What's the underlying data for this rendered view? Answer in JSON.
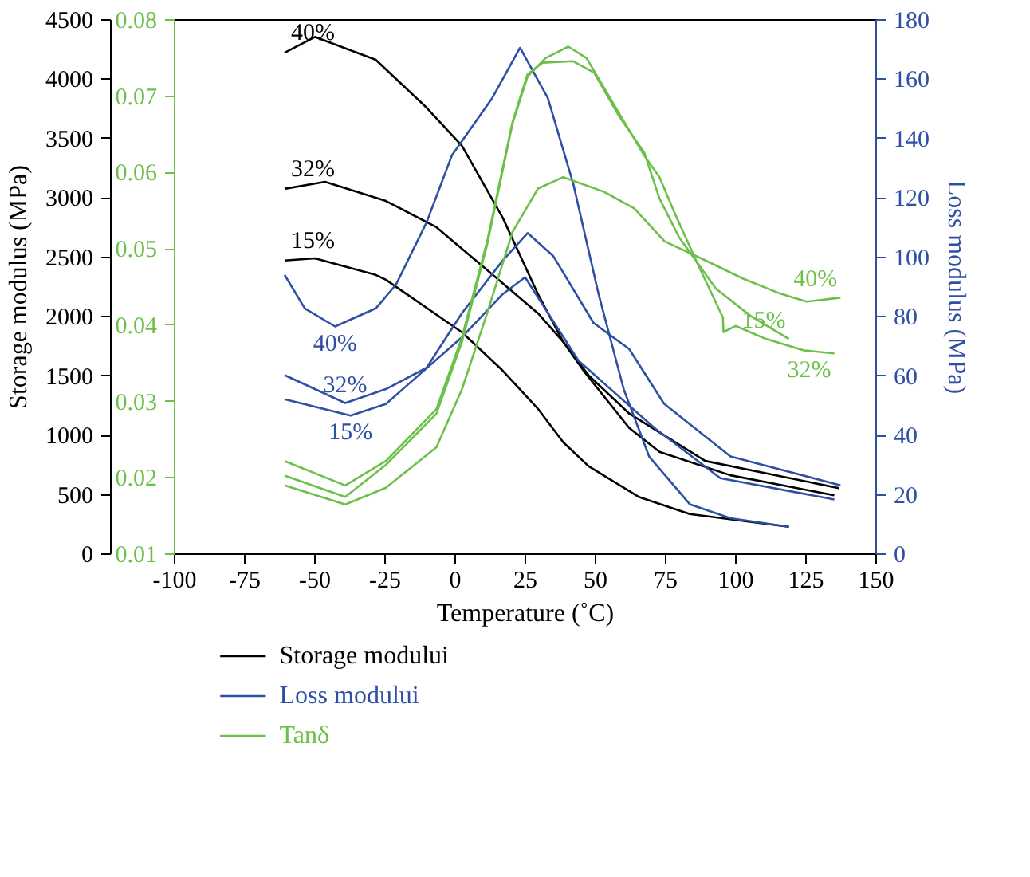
{
  "chart_data": {
    "type": "line",
    "xlabel": "Temperature (˚C)",
    "ylabel": "Storage modulus (MPa)",
    "y2label": "Loss modulus (MPa)",
    "xlim": [
      -100,
      150
    ],
    "xticks": [
      -100,
      -75,
      -50,
      -25,
      0,
      25,
      50,
      75,
      100,
      125,
      150
    ],
    "ylim": [
      0,
      4500
    ],
    "yticks": [
      0,
      500,
      1000,
      1500,
      2000,
      2500,
      3000,
      3500,
      4000,
      4500
    ],
    "y2lim": [
      0,
      180
    ],
    "y2ticks": [
      0,
      20,
      40,
      60,
      80,
      100,
      120,
      140,
      160,
      180
    ],
    "y3lim": [
      0.01,
      0.08
    ],
    "y3ticks": [
      0.01,
      0.02,
      0.03,
      0.04,
      0.05,
      0.06,
      0.07,
      0.08
    ],
    "grid": false,
    "legend": "bottom",
    "series": [
      {
        "name": "Storage modului",
        "color": "#000000",
        "x": [
          -60.8,
          -50.0,
          -28.3,
          -10.2,
          2.4,
          16.9,
          29.5,
          38.5,
          47.5,
          56.6,
          62.0,
          89.1,
          136.7
        ],
        "values": [
          4224,
          4357,
          4164,
          3761,
          3439,
          2835,
          2190,
          1788,
          1507,
          1305,
          1184,
          785,
          556
        ]
      },
      {
        "color": "#000000",
        "x": [
          -60.8,
          -46.4,
          -24.7,
          -6.7,
          11.4,
          29.5,
          38.5,
          45.7,
          62.0,
          72.8,
          98.1,
          135.1
        ],
        "values": [
          3077,
          3137,
          2975,
          2754,
          2392,
          2029,
          1788,
          1546,
          1063,
          861,
          664,
          495
        ]
      },
      {
        "color": "#000000",
        "x": [
          -60.8,
          -50.0,
          -28.3,
          -24.7,
          2.4,
          16.9,
          29.5,
          38.5,
          47.5,
          65.6,
          83.6,
          118.9
        ],
        "values": [
          2473,
          2492,
          2352,
          2311,
          1869,
          1546,
          1224,
          942,
          741,
          480,
          338,
          230
        ]
      },
      {
        "name": "Loss modului",
        "color": "#2e4fa3",
        "axis": "y2",
        "x": [
          -60.8,
          -53.6,
          -42.8,
          -28.3,
          -21.1,
          -10.2,
          -1.2,
          13.2,
          23.1,
          33.0,
          42.1,
          51.1,
          60.1,
          69.1,
          83.6,
          98.1,
          118.9
        ],
        "values": [
          94.1,
          82.8,
          76.7,
          82.8,
          90.8,
          111.8,
          134.3,
          153.7,
          170.6,
          153.7,
          124.7,
          87.6,
          55.4,
          32.9,
          16.8,
          12.1,
          9.2
        ]
      },
      {
        "color": "#2e4fa3",
        "axis": "y2",
        "x": [
          -60.8,
          -39.2,
          -24.7,
          -10.2,
          2.4,
          16.9,
          25.8,
          34.9,
          49.3,
          62.0,
          74.4,
          98.1,
          137.3
        ],
        "values": [
          60.3,
          50.9,
          55.6,
          62.8,
          81.2,
          98.9,
          108.2,
          100.5,
          77.9,
          69.1,
          50.7,
          32.9,
          23.2
        ]
      },
      {
        "color": "#2e4fa3",
        "axis": "y2",
        "x": [
          -60.8,
          -37.3,
          -24.7,
          2.4,
          16.9,
          24.9,
          43.9,
          71.0,
          94.5,
          135.1
        ],
        "values": [
          52.2,
          46.7,
          50.6,
          73.1,
          87.6,
          93.3,
          65.2,
          42.5,
          25.6,
          18.4
        ]
      },
      {
        "name": "Tanδ",
        "color": "#6cc04a",
        "axis": "y3",
        "x": [
          -60.8,
          -39.2,
          -24.7,
          -6.7,
          2.4,
          11.4,
          20.4,
          29.5,
          38.5,
          52.9,
          63.8,
          74.6,
          89.1,
          102.6,
          116.1,
          125.2,
          137.3
        ],
        "values": [
          0.019,
          0.0165,
          0.0187,
          0.024,
          0.0316,
          0.0416,
          0.0522,
          0.0579,
          0.0594,
          0.0575,
          0.0553,
          0.051,
          0.0485,
          0.0461,
          0.0441,
          0.0431,
          0.0436
        ]
      },
      {
        "color": "#6cc04a",
        "axis": "y3",
        "x": [
          -60.8,
          -39.2,
          -24.7,
          -6.7,
          2.4,
          11.4,
          20.4,
          25.8,
          31.1,
          41.9,
          49.5,
          58.2,
          67.4,
          72.8,
          79.8,
          92.9,
          105.3,
          118.9
        ],
        "values": [
          0.0222,
          0.019,
          0.0222,
          0.029,
          0.0384,
          0.051,
          0.0666,
          0.0729,
          0.0744,
          0.0746,
          0.0731,
          0.0675,
          0.0626,
          0.0566,
          0.0515,
          0.0448,
          0.0412,
          0.0382
        ]
      },
      {
        "color": "#6cc04a",
        "axis": "y3",
        "x": [
          -60.8,
          -39.2,
          -24.7,
          -6.7,
          2.4,
          11.4,
          20.4,
          25.8,
          32.2,
          40.3,
          46.8,
          58.2,
          67.4,
          72.8,
          78.2,
          86.3,
          95.4,
          95.6,
          99.9,
          110.7,
          124.3,
          135.1
        ],
        "values": [
          0.0203,
          0.0175,
          0.0217,
          0.0284,
          0.0378,
          0.0506,
          0.0664,
          0.0726,
          0.075,
          0.0765,
          0.075,
          0.0679,
          0.0622,
          0.0594,
          0.0547,
          0.0481,
          0.041,
          0.0391,
          0.0399,
          0.0382,
          0.0367,
          0.0363
        ]
      }
    ],
    "annotations": [
      "40%",
      "32%",
      "15%",
      "40%",
      "32%",
      "15%",
      "40%",
      "15%",
      "32%"
    ]
  }
}
